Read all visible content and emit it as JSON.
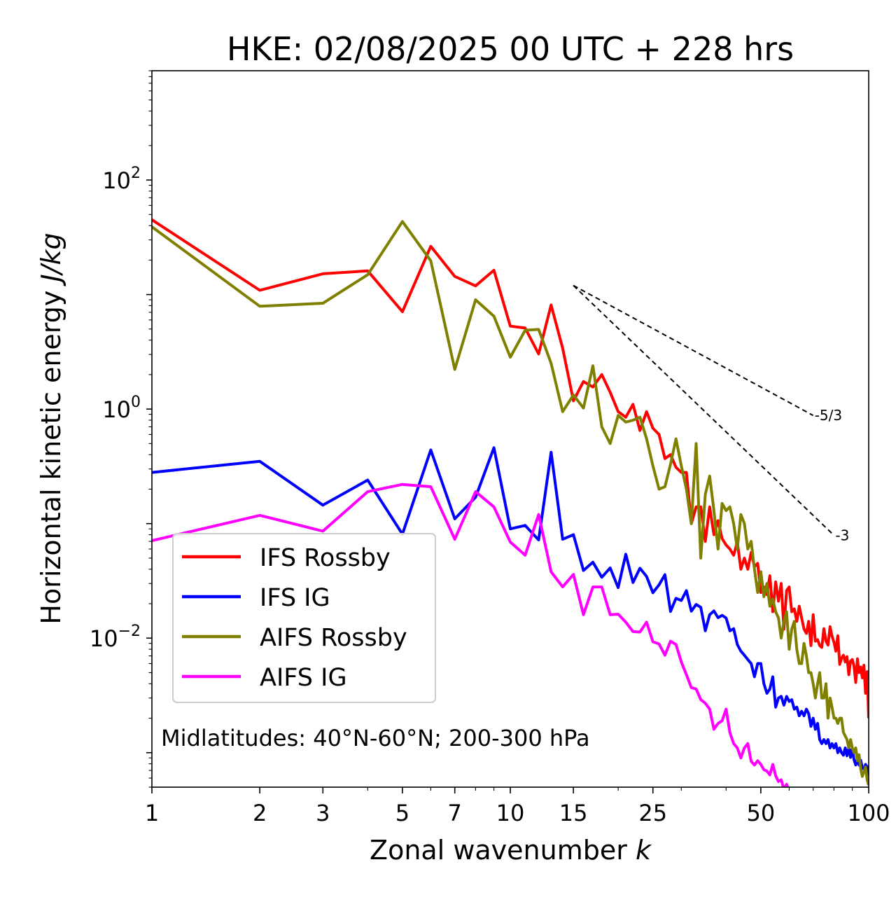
{
  "chart_data": {
    "type": "line",
    "title": "HKE: 02/08/2025 00 UTC + 228 hrs",
    "xlabel": "Zonal wavenumber",
    "xlabel_var": "k",
    "ylabel": "Horizontal kinetic energy",
    "ylabel_unit": "J/kg",
    "xscale": "log",
    "yscale": "log",
    "xlim": [
      1,
      100
    ],
    "ylim": [
      0.0005,
      900
    ],
    "x_ticks": [
      {
        "value": 1,
        "label": "1"
      },
      {
        "value": 2,
        "label": "2"
      },
      {
        "value": 3,
        "label": "3"
      },
      {
        "value": 5,
        "label": "5"
      },
      {
        "value": 7,
        "label": "7"
      },
      {
        "value": 10,
        "label": "10"
      },
      {
        "value": 15,
        "label": "15"
      },
      {
        "value": 25,
        "label": "25"
      },
      {
        "value": 50,
        "label": "50"
      },
      {
        "value": 100,
        "label": "100"
      }
    ],
    "y_ticks": [
      {
        "value": 0.01,
        "base": "10",
        "exp": "−2"
      },
      {
        "value": 1,
        "base": "10",
        "exp": "0"
      },
      {
        "value": 100,
        "base": "10",
        "exp": "2"
      }
    ],
    "annotation": "Midlatitudes: 40°N-60°N; 200-300 hPa",
    "legend_position": "lower-left",
    "reference_lines": [
      {
        "label": "-5/3",
        "x": [
          15,
          70
        ],
        "y": [
          12.0,
          0.88
        ]
      },
      {
        "label": "-3",
        "x": [
          15,
          80
        ],
        "y": [
          12.0,
          0.079
        ]
      }
    ],
    "series": [
      {
        "name": "IFS Rossby",
        "color": "#ff0000",
        "x": [
          1,
          2,
          3,
          4,
          5,
          6,
          7,
          8,
          9,
          10,
          11,
          12,
          13,
          14,
          15,
          16,
          17,
          18,
          19,
          20,
          21,
          22,
          23,
          24,
          25,
          26,
          27,
          28,
          29,
          30,
          31,
          32,
          33,
          34,
          35,
          36,
          37,
          38,
          39,
          40,
          41,
          42,
          43,
          44,
          45,
          46,
          47,
          48,
          49,
          50,
          51,
          52,
          53,
          54,
          55,
          56,
          57,
          58,
          59,
          60,
          61,
          62,
          63,
          64,
          65,
          66,
          67,
          68,
          69,
          70,
          71,
          72,
          73,
          74,
          75,
          76,
          77,
          78,
          79,
          80,
          81,
          82,
          83,
          84,
          85,
          86,
          87,
          88,
          89,
          90,
          91,
          92,
          93,
          94,
          95,
          96,
          97,
          98,
          99,
          100
        ],
        "y": [
          45,
          10.9,
          15.2,
          16.1,
          7.08,
          26.4,
          14.4,
          11.9,
          16.3,
          5.3,
          5.1,
          3.03,
          8.11,
          3.4,
          1.18,
          1.74,
          1.56,
          2.0,
          1.4,
          0.95,
          0.85,
          1.1,
          0.65,
          0.95,
          0.68,
          0.6,
          0.37,
          0.4,
          0.31,
          0.28,
          0.28,
          0.1,
          0.14,
          0.14,
          0.07,
          0.14,
          0.08,
          0.106,
          0.074,
          0.065,
          0.06,
          0.053,
          0.069,
          0.04,
          0.05,
          0.04,
          0.056,
          0.042,
          0.045,
          0.025,
          0.028,
          0.024,
          0.035,
          0.017,
          0.031,
          0.021,
          0.03,
          0.012,
          0.026,
          0.028,
          0.017,
          0.018,
          0.014,
          0.019,
          0.015,
          0.012,
          0.011,
          0.014,
          0.0086,
          0.016,
          0.0094,
          0.0097,
          0.0086,
          0.0083,
          0.0121,
          0.0094,
          0.0087,
          0.0126,
          0.0104,
          0.0092,
          0.0077,
          0.0105,
          0.0059,
          0.0067,
          0.0071,
          0.0062,
          0.0069,
          0.0048,
          0.0063,
          0.0065,
          0.0057,
          0.0041,
          0.0066,
          0.005,
          0.0056,
          0.0045,
          0.0058,
          0.0033,
          0.0051,
          0.002
        ]
      },
      {
        "name": "IFS IG",
        "color": "#0000ff",
        "x": [
          1,
          2,
          3,
          4,
          5,
          6,
          7,
          8,
          9,
          10,
          11,
          12,
          13,
          14,
          15,
          16,
          17,
          18,
          19,
          20,
          21,
          22,
          23,
          24,
          25,
          26,
          27,
          28,
          29,
          30,
          31,
          32,
          33,
          34,
          35,
          36,
          37,
          38,
          39,
          40,
          41,
          42,
          43,
          44,
          45,
          46,
          47,
          48,
          49,
          50,
          51,
          52,
          53,
          54,
          55,
          56,
          57,
          58,
          59,
          60,
          61,
          62,
          63,
          64,
          65,
          66,
          67,
          68,
          69,
          70,
          71,
          72,
          73,
          74,
          75,
          76,
          77,
          78,
          79,
          80,
          81,
          82,
          83,
          84,
          85,
          86,
          87,
          88,
          89,
          90,
          91,
          92,
          93,
          94,
          95,
          96,
          97,
          98,
          99,
          100
        ],
        "y": [
          0.28,
          0.35,
          0.145,
          0.24,
          0.081,
          0.44,
          0.11,
          0.17,
          0.46,
          0.09,
          0.0964,
          0.072,
          0.42,
          0.073,
          0.08,
          0.039,
          0.046,
          0.034,
          0.041,
          0.0276,
          0.054,
          0.0306,
          0.0408,
          0.0346,
          0.0249,
          0.0292,
          0.0358,
          0.0171,
          0.0223,
          0.0213,
          0.026,
          0.0172,
          0.0197,
          0.0186,
          0.0116,
          0.016,
          0.0173,
          0.0151,
          0.0158,
          0.015,
          0.0116,
          0.0121,
          0.0088,
          0.0077,
          0.0071,
          0.0065,
          0.006,
          0.0046,
          0.006,
          0.006,
          0.004,
          0.0033,
          0.0036,
          0.0046,
          0.0025,
          0.003,
          0.0031,
          0.0026,
          0.0031,
          0.0028,
          0.0029,
          0.0024,
          0.0025,
          0.0021,
          0.0023,
          0.0021,
          0.0024,
          0.0022,
          0.0017,
          0.002,
          0.0016,
          0.0018,
          0.0013,
          0.0012,
          0.0013,
          0.0012,
          0.0013,
          0.0011,
          0.0012,
          0.0011,
          0.0012,
          0.001,
          0.0011,
          0.001,
          0.00095,
          0.0011,
          0.00094,
          0.0011,
          0.00091,
          0.0011,
          0.00087,
          0.00078,
          0.00089,
          0.00078,
          0.00086,
          0.00073,
          0.00072,
          0.00079,
          0.00075,
          0.00063
        ]
      },
      {
        "name": "AIFS Rossby",
        "color": "#808000",
        "x": [
          1,
          2,
          3,
          4,
          5,
          6,
          7,
          8,
          9,
          10,
          11,
          12,
          13,
          14,
          15,
          16,
          17,
          18,
          19,
          20,
          21,
          22,
          23,
          24,
          25,
          26,
          27,
          28,
          29,
          30,
          31,
          32,
          33,
          34,
          35,
          36,
          37,
          38,
          39,
          40,
          41,
          42,
          43,
          44,
          45,
          46,
          47,
          48,
          49,
          50,
          51,
          52,
          53,
          54,
          55,
          56,
          57,
          58,
          59,
          60,
          61,
          62,
          63,
          64,
          65,
          66,
          67,
          68,
          69,
          70,
          71,
          72,
          73,
          74,
          75,
          76,
          77,
          78,
          79,
          80,
          81,
          82,
          83,
          84,
          85,
          86,
          87,
          88,
          89,
          90,
          91,
          92,
          93,
          94,
          95,
          96,
          97,
          98,
          99,
          100
        ],
        "y": [
          39,
          7.9,
          8.4,
          14.9,
          43.4,
          19.7,
          2.22,
          9.0,
          6.47,
          2.84,
          4.88,
          4.96,
          2.51,
          0.95,
          1.33,
          1.02,
          2.39,
          0.7,
          0.5,
          0.88,
          0.77,
          0.8,
          0.85,
          0.55,
          0.32,
          0.2,
          0.21,
          0.33,
          0.55,
          0.32,
          0.2,
          0.1,
          0.5,
          0.05,
          0.18,
          0.26,
          0.13,
          0.06,
          0.15,
          0.13,
          0.14,
          0.1,
          0.06,
          0.12,
          0.1,
          0.06,
          0.07,
          0.04,
          0.025,
          0.038,
          0.023,
          0.03,
          0.019,
          0.022,
          0.017,
          0.015,
          0.01,
          0.014,
          0.017,
          0.008,
          0.012,
          0.014,
          0.008,
          0.006,
          0.006,
          0.009,
          0.007,
          0.005,
          0.005,
          0.004,
          0.003,
          0.004,
          0.005,
          0.003,
          0.003,
          0.004,
          0.002,
          0.003,
          0.0025,
          0.002,
          0.002,
          0.0018,
          0.002,
          0.002,
          0.0015,
          0.0014,
          0.0013,
          0.0011,
          0.0013,
          0.0011,
          0.001,
          0.0011,
          0.00085,
          0.00096,
          0.00072,
          0.00062,
          0.00068,
          0.00075,
          0.00058,
          0.00052
        ]
      },
      {
        "name": "AIFS IG",
        "color": "#ff00ff",
        "x": [
          1,
          2,
          3,
          4,
          5,
          6,
          7,
          8,
          9,
          10,
          11,
          12,
          13,
          14,
          15,
          16,
          17,
          18,
          19,
          20,
          21,
          22,
          23,
          24,
          25,
          26,
          27,
          28,
          29,
          30,
          31,
          32,
          33,
          34,
          35,
          36,
          37,
          38,
          39,
          40,
          41,
          42,
          43,
          44,
          45,
          46,
          47,
          48,
          49,
          50,
          51,
          52,
          53,
          54,
          55,
          56,
          57,
          58,
          59,
          60
        ],
        "y": [
          0.071,
          0.118,
          0.086,
          0.19,
          0.22,
          0.21,
          0.073,
          0.19,
          0.14,
          0.069,
          0.053,
          0.12,
          0.038,
          0.028,
          0.036,
          0.016,
          0.028,
          0.028,
          0.016,
          0.0162,
          0.0138,
          0.0114,
          0.0113,
          0.0138,
          0.0093,
          0.0089,
          0.0071,
          0.0094,
          0.0088,
          0.0062,
          0.0048,
          0.0037,
          0.0036,
          0.0029,
          0.0027,
          0.0024,
          0.0016,
          0.0018,
          0.0019,
          0.0024,
          0.0015,
          0.0012,
          0.0011,
          0.0009,
          0.0011,
          0.0012,
          0.00084,
          0.00078,
          0.00085,
          0.00079,
          0.00071,
          0.00069,
          0.00064,
          0.00079,
          0.00063,
          0.00056,
          0.00058,
          0.00048,
          0.00053,
          0.00046
        ]
      }
    ]
  }
}
